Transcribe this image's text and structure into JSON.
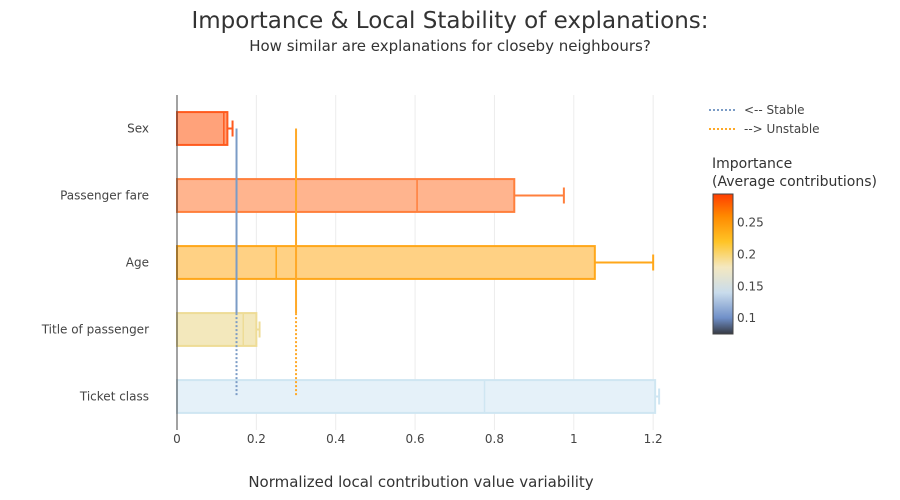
{
  "chart_data": {
    "type": "bar",
    "title": "Importance & Local Stability of explanations:",
    "subtitle": "How similar are explanations for closeby neighbours?",
    "xlabel": "Normalized local contribution value variability",
    "ylabel": "",
    "xlim": [
      0,
      1.25
    ],
    "x_ticks": [
      "0",
      "0.2",
      "0.4",
      "0.6",
      "0.8",
      "1",
      "1.2"
    ],
    "x_tick_values": [
      0,
      0.2,
      0.4,
      0.6,
      0.8,
      1.0,
      1.2
    ],
    "grid": true,
    "categories": [
      "Sex",
      "Passenger fare",
      "Age",
      "Title of passenger",
      "Ticket class"
    ],
    "values": [
      0.127,
      0.85,
      1.053,
      0.2,
      1.205
    ],
    "median_values": [
      0.118,
      0.605,
      0.25,
      0.167,
      0.775
    ],
    "error_upper": [
      0.14,
      0.975,
      1.2,
      0.208,
      1.215
    ],
    "importance": [
      0.295,
      0.27,
      0.22,
      0.195,
      0.155
    ],
    "bar_fill_colors": [
      "#ffa27a",
      "#ffb48e",
      "#ffd184",
      "#f3e8bc",
      "#e5f1f9"
    ],
    "bar_edge_colors": [
      "#ff5a1e",
      "#ff7f3c",
      "#ffa71a",
      "#eedc96",
      "#cfe6f2"
    ],
    "reference_lines": [
      {
        "name": "<-- Stable",
        "x": 0.15,
        "color": "#7b9cc6"
      },
      {
        "name": "--> Unstable",
        "x": 0.3,
        "color": "#ffa927"
      }
    ],
    "legend_position": "top-right",
    "colorbar": {
      "title_line1": "Importance",
      "title_line2": "(Average contributions)",
      "range": [
        0.075,
        0.295
      ],
      "tick_labels": [
        "0.25",
        "0.2",
        "0.15",
        "0.1"
      ],
      "tick_values": [
        0.25,
        0.2,
        0.15,
        0.1
      ],
      "stops": [
        {
          "v": 0.075,
          "color": "#363a43"
        },
        {
          "v": 0.1,
          "color": "#6f8fc8"
        },
        {
          "v": 0.14,
          "color": "#c9dcec"
        },
        {
          "v": 0.18,
          "color": "#f4e8c0"
        },
        {
          "v": 0.22,
          "color": "#ffc426"
        },
        {
          "v": 0.26,
          "color": "#ff8a00"
        },
        {
          "v": 0.295,
          "color": "#ff3d00"
        }
      ]
    }
  }
}
